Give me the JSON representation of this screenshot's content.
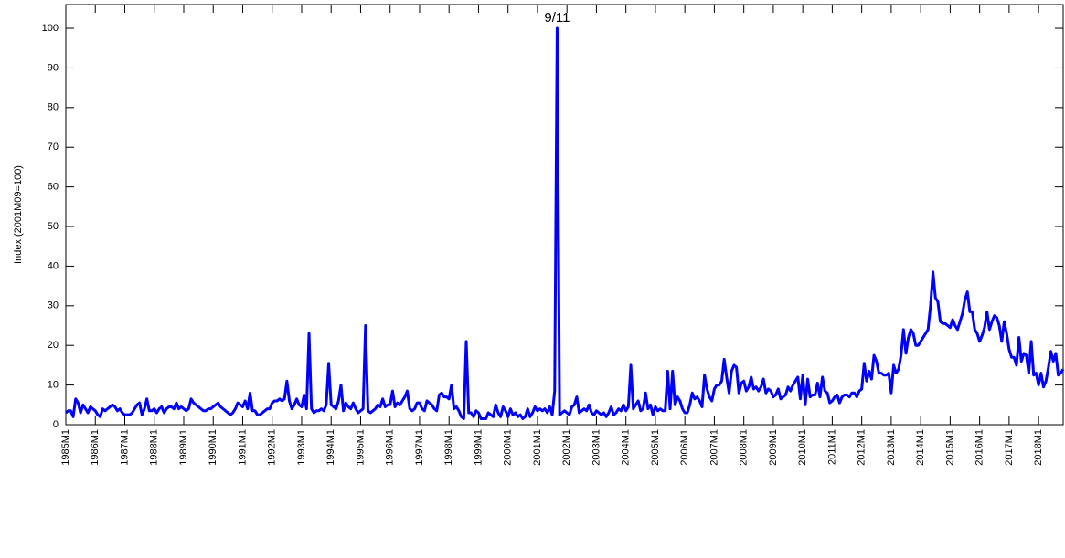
{
  "chart_data": {
    "type": "line",
    "ylabel": "Index (2001M09=100)",
    "annotation": "9/11",
    "color": "#0000ff",
    "ylim": [
      0,
      106
    ],
    "yticks": [
      0,
      10,
      20,
      30,
      40,
      50,
      60,
      70,
      80,
      90,
      100
    ],
    "categories": [
      "1985M1",
      null,
      null,
      null,
      null,
      null,
      null,
      null,
      null,
      null,
      null,
      null,
      "1986M1",
      null,
      null,
      null,
      null,
      null,
      null,
      null,
      null,
      null,
      null,
      null,
      "1987M1",
      null,
      null,
      null,
      null,
      null,
      null,
      null,
      null,
      null,
      null,
      null,
      "1988M1",
      null,
      null,
      null,
      null,
      null,
      null,
      null,
      null,
      null,
      null,
      null,
      "1989M1",
      null,
      null,
      null,
      null,
      null,
      null,
      null,
      null,
      null,
      null,
      null,
      "1990M1",
      null,
      null,
      null,
      null,
      null,
      null,
      null,
      null,
      null,
      null,
      null,
      "1991M1",
      null,
      null,
      null,
      null,
      null,
      null,
      null,
      null,
      null,
      null,
      null,
      "1992M1",
      null,
      null,
      null,
      null,
      null,
      null,
      null,
      null,
      null,
      null,
      null,
      "1993M1",
      null,
      null,
      null,
      null,
      null,
      null,
      null,
      null,
      null,
      null,
      null,
      "1994M1",
      null,
      null,
      null,
      null,
      null,
      null,
      null,
      null,
      null,
      null,
      null,
      "1995M1",
      null,
      null,
      null,
      null,
      null,
      null,
      null,
      null,
      null,
      null,
      null,
      "1996M1",
      null,
      null,
      null,
      null,
      null,
      null,
      null,
      null,
      null,
      null,
      null,
      "1997M1",
      null,
      null,
      null,
      null,
      null,
      null,
      null,
      null,
      null,
      null,
      null,
      "1998M1",
      null,
      null,
      null,
      null,
      null,
      null,
      null,
      null,
      null,
      null,
      null,
      "1999M1",
      null,
      null,
      null,
      null,
      null,
      null,
      null,
      null,
      null,
      null,
      null,
      "2000M1",
      null,
      null,
      null,
      null,
      null,
      null,
      null,
      null,
      null,
      null,
      null,
      "2001M1",
      null,
      null,
      null,
      null,
      null,
      null,
      null,
      null,
      null,
      null,
      null,
      "2002M1",
      null,
      null,
      null,
      null,
      null,
      null,
      null,
      null,
      null,
      null,
      null,
      "2003M1",
      null,
      null,
      null,
      null,
      null,
      null,
      null,
      null,
      null,
      null,
      null,
      "2004M1",
      null,
      null,
      null,
      null,
      null,
      null,
      null,
      null,
      null,
      null,
      null,
      "2005M1",
      null,
      null,
      null,
      null,
      null,
      null,
      null,
      null,
      null,
      null,
      null,
      "2006M1",
      null,
      null,
      null,
      null,
      null,
      null,
      null,
      null,
      null,
      null,
      null,
      "2007M1",
      null,
      null,
      null,
      null,
      null,
      null,
      null,
      null,
      null,
      null,
      null,
      "2008M1",
      null,
      null,
      null,
      null,
      null,
      null,
      null,
      null,
      null,
      null,
      null,
      "2009M1",
      null,
      null,
      null,
      null,
      null,
      null,
      null,
      null,
      null,
      null,
      null,
      "2010M1",
      null,
      null,
      null,
      null,
      null,
      null,
      null,
      null,
      null,
      null,
      null,
      "2011M1",
      null,
      null,
      null,
      null,
      null,
      null,
      null,
      null,
      null,
      null,
      null,
      "2012M1",
      null,
      null,
      null,
      null,
      null,
      null,
      null,
      null,
      null,
      null,
      null,
      "2013M1",
      null,
      null,
      null,
      null,
      null,
      null,
      null,
      null,
      null,
      null,
      null,
      "2014M1",
      null,
      null,
      null,
      null,
      null,
      null,
      null,
      null,
      null,
      null,
      null,
      "2015M1",
      null,
      null,
      null,
      null,
      null,
      null,
      null,
      null,
      null,
      null,
      null,
      "2016M1",
      null,
      null,
      null,
      null,
      null,
      null,
      null,
      null,
      null,
      null,
      null,
      "2017M1",
      null,
      null,
      null,
      null,
      null,
      null,
      null,
      null,
      null,
      null,
      null,
      "2018M1",
      null,
      null,
      null,
      null,
      null,
      null,
      null,
      null,
      null,
      null
    ],
    "values": [
      3,
      3.5,
      3.5,
      2,
      6.5,
      5.5,
      3,
      5,
      4,
      3,
      4.5,
      4,
      3.5,
      2.5,
      2,
      4,
      3.5,
      4,
      4.5,
      5,
      4.5,
      3.5,
      4,
      3,
      2.5,
      2.5,
      2.5,
      3,
      4,
      5,
      5.5,
      2.5,
      4,
      6.5,
      3.5,
      3.5,
      4,
      3,
      4,
      4.5,
      3,
      4,
      4.5,
      4.5,
      4,
      5.5,
      4,
      4.5,
      4,
      3.5,
      4,
      6.5,
      5.5,
      5,
      4.5,
      4,
      3.5,
      3.5,
      4,
      4,
      4.5,
      5,
      5.5,
      4.5,
      4,
      3.5,
      3,
      2.5,
      3,
      4,
      5.5,
      5,
      4.5,
      6,
      4,
      8,
      3.5,
      3.5,
      2.5,
      2.5,
      3,
      3.5,
      4,
      4,
      5.5,
      6,
      6,
      6.5,
      6,
      6.5,
      11,
      6,
      4,
      5,
      6.5,
      5,
      4.5,
      7.5,
      4,
      23,
      4,
      3,
      3.5,
      3.5,
      4,
      3.5,
      5,
      15.5,
      5,
      4.5,
      4,
      6,
      10,
      3.5,
      5.5,
      4.5,
      4,
      5.5,
      4,
      3,
      3.5,
      4,
      25,
      3.5,
      3,
      3.5,
      4,
      5,
      4.5,
      6.5,
      4.5,
      5,
      5,
      8.5,
      4.5,
      5.5,
      5,
      6,
      7,
      8.5,
      4,
      3.5,
      4,
      5.5,
      5.5,
      4,
      3.5,
      6,
      5.5,
      5,
      4,
      3.5,
      7.5,
      8,
      7,
      7,
      6.5,
      10,
      4,
      4.5,
      3.5,
      2,
      1.5,
      21,
      3,
      3,
      2,
      3.5,
      3,
      1.5,
      1.5,
      1.5,
      3,
      2.5,
      2,
      5,
      3,
      2,
      4.5,
      3.5,
      2,
      4,
      2.5,
      3,
      2,
      2.5,
      1.5,
      2,
      4,
      2,
      3,
      4.5,
      3.5,
      4,
      3.5,
      4,
      3,
      4.5,
      2.5,
      8.5,
      100,
      2.5,
      3,
      3.5,
      3,
      2.5,
      4.5,
      5,
      7,
      3,
      3.5,
      4,
      3.5,
      5,
      3,
      2.5,
      3.5,
      3,
      2.5,
      3,
      2,
      3,
      4.5,
      2.5,
      3,
      4,
      3.5,
      5,
      3.5,
      4.5,
      15,
      4,
      5,
      6,
      3.5,
      4,
      8,
      4,
      5,
      2.5,
      4.5,
      3.5,
      4,
      3.5,
      3.5,
      13.5,
      4,
      13.5,
      5,
      7,
      6,
      4,
      3,
      3,
      5,
      8,
      6.5,
      7,
      6,
      4.5,
      12.5,
      9,
      7,
      6,
      9,
      10,
      10,
      11,
      16.5,
      12,
      8,
      13.5,
      15,
      14.5,
      8,
      10.5,
      11,
      8.5,
      9.5,
      12,
      9,
      9.5,
      8.5,
      9.5,
      11.5,
      8,
      9,
      8.5,
      7,
      7.5,
      9,
      6.5,
      7,
      7.5,
      9.5,
      8.5,
      10,
      11,
      12,
      6.5,
      12.5,
      5,
      11.5,
      7,
      7.5,
      7.5,
      10.5,
      7,
      12,
      8.5,
      8,
      5.5,
      6,
      7,
      7.5,
      5.5,
      7,
      7.5,
      7.5,
      7,
      8,
      8,
      7,
      8.5,
      9,
      15.5,
      11,
      13.5,
      11.5,
      17.5,
      16,
      13,
      13,
      12.5,
      12.5,
      13,
      8,
      15,
      13,
      14,
      17.5,
      24,
      18,
      22,
      24,
      23,
      20,
      20,
      21,
      22,
      23,
      24,
      30,
      38.5,
      32,
      31,
      26,
      25.5,
      25.5,
      25,
      24.5,
      26.5,
      25,
      24,
      26,
      28,
      31.5,
      33.5,
      28.5,
      28.5,
      24,
      23,
      21,
      22.5,
      24.5,
      28.5,
      24,
      26,
      27.5,
      27,
      25,
      21,
      26,
      23,
      19,
      17,
      17,
      15,
      22,
      16,
      18,
      17.5,
      13,
      21,
      12.5,
      13,
      10,
      13,
      9.5,
      11,
      14.5,
      18.5,
      16,
      18,
      12.5,
      13,
      14
    ]
  }
}
